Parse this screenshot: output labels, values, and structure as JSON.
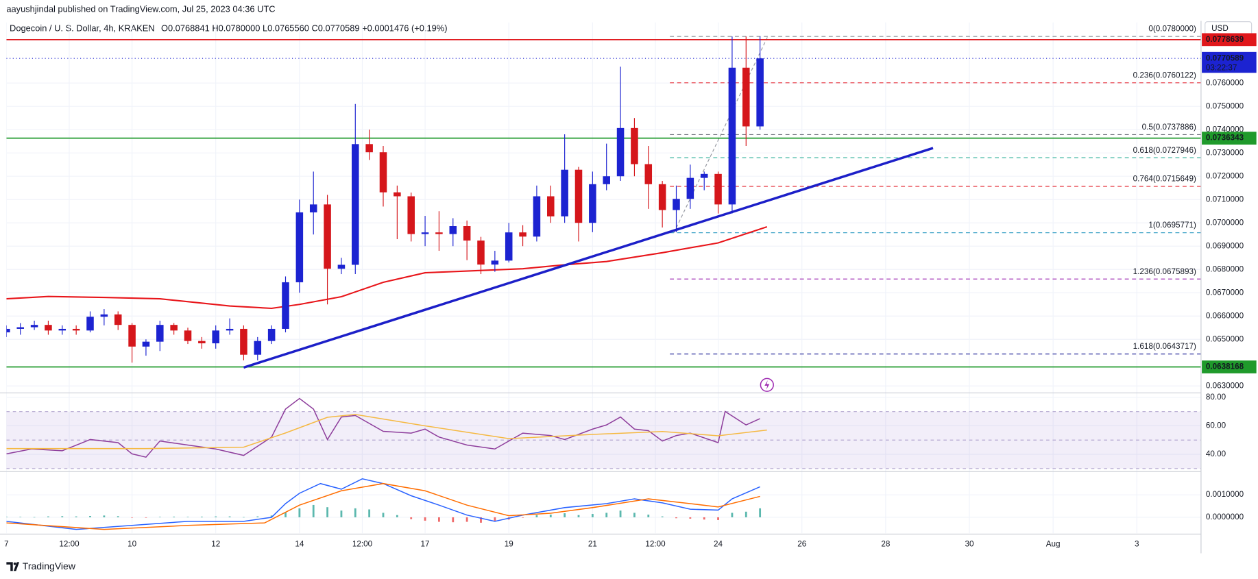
{
  "header": {
    "published": "aayushjindal published on TradingView.com, Jul 25, 2023 04:36 UTC",
    "symbol": "Dogecoin / U. S. Dollar, 4h, KRAKEN",
    "ohlc": "O0.0768841 H0.0780000 L0.0765560 C0.0770589 +0.0001476 (+0.19%)",
    "currency": "USD"
  },
  "footer": {
    "brand": "TradingView"
  },
  "chart_data": [
    {
      "type": "candlestick",
      "open": [
        0.0653,
        0.06545,
        0.06552,
        0.06562,
        0.06538,
        0.06545,
        0.06538,
        0.06597,
        0.06607,
        0.06562,
        0.06469,
        0.0649,
        0.06562,
        0.06538,
        0.06493,
        0.06483,
        0.06538,
        0.06545,
        0.06434,
        0.06493,
        0.06545,
        0.06745,
        0.07045,
        0.07079,
        0.06803,
        0.0682,
        0.07338,
        0.07303,
        0.07131,
        0.07114,
        0.06952,
        0.06959,
        0.06952,
        0.06986,
        0.06924,
        0.06821,
        0.06838,
        0.06959,
        0.06941,
        0.07114,
        0.07028,
        0.07228,
        0.07,
        0.07166,
        0.072,
        0.07407,
        0.07252,
        0.07166,
        0.07055,
        0.07103,
        0.07193,
        0.0721,
        0.07079,
        0.07666,
        0.07414
      ],
      "high": [
        0.0656,
        0.0657,
        0.0658,
        0.0658,
        0.0656,
        0.0656,
        0.0662,
        0.0663,
        0.0662,
        0.0657,
        0.065,
        0.0658,
        0.0657,
        0.0655,
        0.0651,
        0.0656,
        0.0659,
        0.0656,
        0.0651,
        0.0656,
        0.0677,
        0.071,
        0.0722,
        0.0712,
        0.0685,
        0.0751,
        0.074,
        0.0733,
        0.0716,
        0.0713,
        0.0703,
        0.0705,
        0.0702,
        0.0701,
        0.0694,
        0.0688,
        0.07,
        0.0699,
        0.0716,
        0.0716,
        0.0738,
        0.0724,
        0.0722,
        0.0734,
        0.0767,
        0.0745,
        0.0733,
        0.0718,
        0.0716,
        0.0725,
        0.0722,
        0.0722,
        0.078,
        0.078,
        0.078
      ],
      "low": [
        0.0651,
        0.0652,
        0.0654,
        0.0652,
        0.0652,
        0.0652,
        0.0653,
        0.0656,
        0.0654,
        0.064,
        0.0643,
        0.0645,
        0.0652,
        0.0648,
        0.0646,
        0.0646,
        0.0652,
        0.0641,
        0.0641,
        0.0648,
        0.0653,
        0.067,
        0.0695,
        0.0665,
        0.0678,
        0.0678,
        0.0727,
        0.0707,
        0.0693,
        0.0692,
        0.069,
        0.0688,
        0.069,
        0.0684,
        0.0678,
        0.0679,
        0.0683,
        0.069,
        0.0692,
        0.07,
        0.07,
        0.0692,
        0.0696,
        0.0714,
        0.0718,
        0.072,
        0.0706,
        0.0698,
        0.0696,
        0.0706,
        0.0714,
        0.0704,
        0.0704,
        0.0733,
        0.074
      ],
      "close": [
        0.06545,
        0.06552,
        0.06562,
        0.06538,
        0.06545,
        0.06538,
        0.06597,
        0.06607,
        0.06562,
        0.06469,
        0.0649,
        0.06562,
        0.06538,
        0.06493,
        0.06483,
        0.06538,
        0.06545,
        0.06434,
        0.06493,
        0.06545,
        0.06745,
        0.07045,
        0.07079,
        0.06803,
        0.0682,
        0.07338,
        0.07303,
        0.07131,
        0.07114,
        0.06952,
        0.06959,
        0.06952,
        0.06986,
        0.06924,
        0.06821,
        0.06838,
        0.06959,
        0.06941,
        0.07114,
        0.07028,
        0.07228,
        0.07,
        0.07166,
        0.072,
        0.07407,
        0.07252,
        0.07166,
        0.07055,
        0.07103,
        0.07193,
        0.0721,
        0.07079,
        0.07666,
        0.07414,
        0.0770589
      ],
      "up_color": "#1c23d1",
      "down_color": "#d5161b",
      "xlim": [
        0,
        85.6
      ],
      "ylim": [
        0.0627,
        0.0786
      ],
      "xticks": [
        {
          "value": 0,
          "label": "7"
        },
        {
          "value": 4.5,
          "label": "12:00"
        },
        {
          "value": 9,
          "label": "10"
        },
        {
          "value": 15,
          "label": "12"
        },
        {
          "value": 21,
          "label": "14"
        },
        {
          "value": 25.5,
          "label": "12:00"
        },
        {
          "value": 30,
          "label": "17"
        },
        {
          "value": 36,
          "label": "19"
        },
        {
          "value": 42,
          "label": "21"
        },
        {
          "value": 46.5,
          "label": "12:00"
        },
        {
          "value": 51,
          "label": "24"
        },
        {
          "value": 57,
          "label": "26"
        },
        {
          "value": 63,
          "label": "28"
        },
        {
          "value": 69,
          "label": "30"
        },
        {
          "value": 75,
          "label": "Aug"
        },
        {
          "value": 81,
          "label": "3"
        }
      ],
      "yticks": [
        {
          "value": 0.063,
          "label": "0.0630000"
        },
        {
          "value": 0.065,
          "label": "0.0650000"
        },
        {
          "value": 0.066,
          "label": "0.0660000"
        },
        {
          "value": 0.067,
          "label": "0.0670000"
        },
        {
          "value": 0.068,
          "label": "0.0680000"
        },
        {
          "value": 0.069,
          "label": "0.0690000"
        },
        {
          "value": 0.07,
          "label": "0.0700000"
        },
        {
          "value": 0.071,
          "label": "0.0710000"
        },
        {
          "value": 0.072,
          "label": "0.0720000"
        },
        {
          "value": 0.073,
          "label": "0.0730000"
        },
        {
          "value": 0.074,
          "label": "0.0740000"
        },
        {
          "value": 0.075,
          "label": "0.0750000"
        },
        {
          "value": 0.076,
          "label": "0.0760000"
        }
      ],
      "grid": true,
      "moving_average": {
        "color": "#e8151a",
        "x": [
          0,
          3,
          7,
          11,
          16,
          19,
          21,
          24,
          27,
          30,
          33,
          37,
          40,
          43,
          47,
          51,
          54.5
        ],
        "values": [
          0.06674,
          0.06684,
          0.0668,
          0.06674,
          0.06643,
          0.06633,
          0.0665,
          0.06683,
          0.06745,
          0.06786,
          0.06793,
          0.06803,
          0.0682,
          0.06834,
          0.06872,
          0.06914,
          0.06983
        ]
      },
      "trendline": {
        "color": "#1c1fc8",
        "x": [
          17,
          66.4
        ],
        "values": [
          0.06379,
          0.07321
        ]
      },
      "fib_levels": [
        {
          "label": "0(0.0780000)",
          "value": 0.078,
          "color": "#8a8d96"
        },
        {
          "label": "0.236(0.0760122)",
          "value": 0.0760122,
          "color": "#e5343f"
        },
        {
          "label": "0.5(0.0737886)",
          "value": 0.0737886,
          "color": "#6f727c"
        },
        {
          "label": "0.618(0.0727946)",
          "value": 0.0727946,
          "color": "#22ab94"
        },
        {
          "label": "0.764(0.0715649)",
          "value": 0.0715649,
          "color": "#e5343f"
        },
        {
          "label": "1(0.0695771)",
          "value": 0.0695771,
          "color": "#3ea3c7"
        },
        {
          "label": "1.236(0.0675893)",
          "value": 0.0675893,
          "color": "#9c27b0"
        },
        {
          "label": "1.618(0.0643717)",
          "value": 0.0643717,
          "color": "#2a2e9c"
        }
      ],
      "price_levels": [
        {
          "label": "0.0778639",
          "value": 0.0778639,
          "color": "#e0171b"
        },
        {
          "label": "0.0736343",
          "value": 0.0736343,
          "color": "#1f9a2b"
        },
        {
          "label": "0.0638168",
          "value": 0.0638168,
          "color": "#1f9a2b"
        }
      ],
      "last_price": {
        "label": "0.0770589",
        "value": 0.0770589,
        "countdown": "03:22:37",
        "color": "#1c23d1"
      }
    },
    {
      "type": "line",
      "ylim": [
        27.9,
        83.1
      ],
      "yticks": [
        {
          "value": 40,
          "label": "40.00"
        },
        {
          "value": 60,
          "label": "60.00"
        },
        {
          "value": 80,
          "label": "80.00"
        }
      ],
      "band": [
        30,
        70
      ],
      "band_color": "#7e57c2",
      "levels": [
        70,
        50,
        30
      ],
      "series": [
        {
          "color": "#8e3e9c",
          "x": [
            0,
            1.8,
            4,
            6,
            8,
            9,
            10,
            11,
            13,
            15,
            17,
            19,
            20,
            21,
            22,
            23,
            24,
            25,
            27,
            29,
            30,
            31,
            33,
            35,
            37,
            39,
            40,
            42,
            43,
            44,
            45,
            46,
            47,
            48,
            49,
            51,
            51.5,
            53,
            54
          ],
          "values": [
            40.3,
            43.7,
            42.5,
            50.4,
            48.2,
            40.3,
            38.0,
            49.3,
            46.5,
            43.7,
            39.2,
            52.1,
            71.8,
            79.2,
            71.8,
            50.4,
            66.2,
            67.3,
            56.1,
            54.9,
            57.7,
            52.1,
            46.5,
            43.7,
            54.9,
            53.2,
            50.4,
            57.7,
            60.6,
            66.2,
            57.7,
            56.6,
            49.3,
            53.2,
            54.9,
            48.2,
            70.1,
            60.6,
            65.1
          ]
        },
        {
          "color": "#f5b942",
          "x": [
            0,
            10,
            17,
            20,
            23,
            25,
            30,
            36,
            42,
            47,
            51,
            54.5
          ],
          "values": [
            44,
            44,
            45,
            55,
            66,
            68,
            60,
            51,
            54,
            56,
            53,
            57
          ]
        }
      ]
    },
    {
      "type": "macd",
      "ylim": [
        -0.00071,
        0.002036
      ],
      "yticks": [
        {
          "value": 0,
          "label": "0.0000000"
        },
        {
          "value": 0.001,
          "label": "0.0010000"
        }
      ],
      "series": [
        {
          "color": "#2962ff",
          "x": [
            0,
            5,
            9,
            13,
            17,
            19,
            20,
            21,
            22.5,
            24,
            25.5,
            27,
            29,
            31,
            33,
            35,
            37,
            40,
            43,
            45,
            47,
            49,
            51,
            52,
            54
          ],
          "values": [
            -0.00018,
            -0.00054,
            -0.00036,
            -0.00018,
            -0.00018,
            0,
            0.00061,
            0.00107,
            0.0015,
            0.00125,
            0.00171,
            0.0015,
            0.00096,
            0.00054,
            0.0001,
            -0.00018,
            0.0001,
            0.00043,
            0.00061,
            0.00082,
            0.00064,
            0.00036,
            0.00032,
            0.00082,
            0.00136
          ]
        },
        {
          "color": "#ff6d00",
          "x": [
            0,
            7,
            13,
            18.5,
            21,
            24,
            27,
            30,
            33,
            36,
            39,
            42,
            46,
            49,
            51,
            54
          ],
          "values": [
            -0.00025,
            -0.00054,
            -0.00036,
            -0.00025,
            0.00054,
            0.00118,
            0.0015,
            0.00118,
            0.00054,
            7e-05,
            0.00018,
            0.00043,
            0.00082,
            0.00061,
            0.00046,
            0.00093
          ]
        }
      ],
      "histogram": {
        "up_color": "#5bb8ae",
        "down_color": "#ef6a6a",
        "values": [
          3e-05,
          2e-05,
          1e-05,
          4e-05,
          5e-05,
          4e-05,
          6e-05,
          8e-05,
          5e-05,
          -1e-05,
          -2e-05,
          2e-05,
          3e-05,
          2e-05,
          3e-05,
          4e-05,
          4e-05,
          1e-05,
          4e-05,
          8e-05,
          0.00022,
          0.0004,
          0.00055,
          0.00045,
          0.0003,
          0.0004,
          0.00035,
          0.0002,
          0.0001,
          -8e-05,
          -0.00015,
          -0.0002,
          -0.00022,
          -0.0002,
          -0.00024,
          -0.00018,
          -0.0001,
          -2e-05,
          0.0001,
          0.00012,
          0.00018,
          0.0001,
          0.00015,
          0.0002,
          0.0003,
          0.0002,
          0.00012,
          4e-05,
          -4e-05,
          -6e-05,
          -0.0001,
          -0.00012,
          0.0002,
          0.00025,
          0.0004
        ]
      }
    }
  ]
}
